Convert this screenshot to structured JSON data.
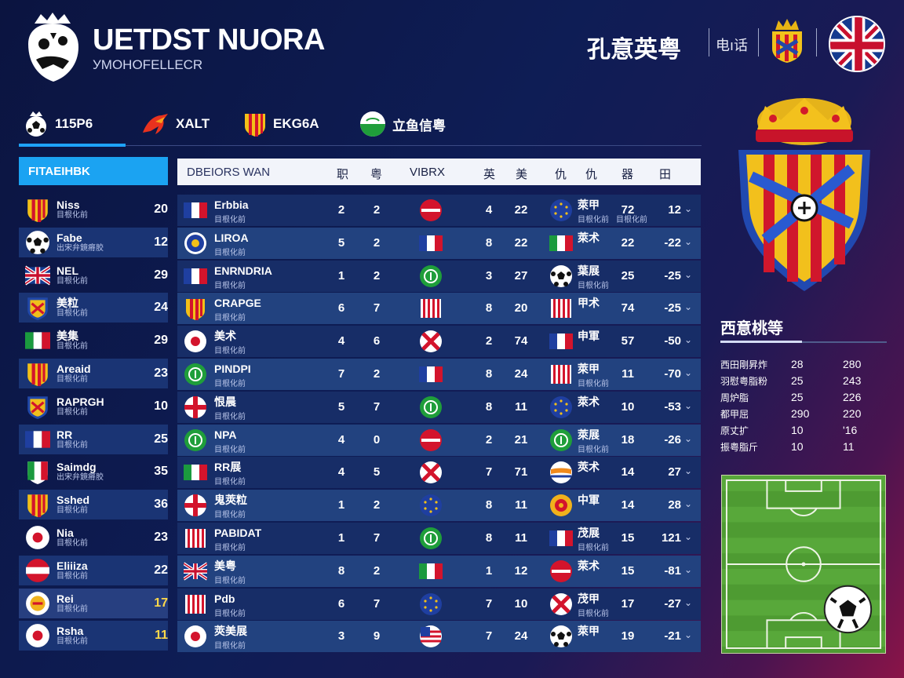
{
  "header": {
    "title": "UETDST NUORA",
    "subtitle": "УMOHOFELLECR",
    "right_title": "孔意英粤",
    "lang_label": "电ı话",
    "logo_icon": "lion-crest-icon",
    "crest_icon": "crown-crest-icon",
    "flag_icon": "uk-flag-icon"
  },
  "tabs": [
    {
      "label": "115P6",
      "icon": "football-crest-icon",
      "active": true
    },
    {
      "label": "XALT",
      "icon": "phoenix-icon",
      "active": false
    },
    {
      "label": "EKG6A",
      "icon": "striped-shield-icon",
      "active": false
    },
    {
      "label": "立鱼信粤",
      "icon": "green-badge-icon",
      "active": false
    }
  ],
  "left_panel": {
    "header": "FITAEIHBK",
    "rows": [
      {
        "name": "Niss",
        "sub": "目根化前",
        "pts": "20",
        "icon": "striped-shield-icon"
      },
      {
        "name": "Fabe",
        "sub": "出宋弁鏡瘠胶",
        "pts": "12",
        "icon": "soccer-ball-icon"
      },
      {
        "name": "NEL",
        "sub": "目根化前",
        "pts": "29",
        "icon": "uk-flag-icon"
      },
      {
        "name": "美粒",
        "sub": "目根化前",
        "pts": "24",
        "icon": "crest-icon"
      },
      {
        "name": "美集",
        "sub": "目根化前",
        "pts": "29",
        "icon": "italy-flag-icon"
      },
      {
        "name": "Areaid",
        "sub": "目根化前",
        "pts": "23",
        "icon": "striped-shield-icon"
      },
      {
        "name": "RAPRGH",
        "sub": "目根化前",
        "pts": "10",
        "icon": "crest-icon"
      },
      {
        "name": "RR",
        "sub": "目根化前",
        "pts": "25",
        "icon": "france-flag-icon"
      },
      {
        "name": "Saimdg",
        "sub": "出宋弁鏡瘠胶",
        "pts": "35",
        "icon": "italy-crest-icon"
      },
      {
        "name": "Sshed",
        "sub": "目根化前",
        "pts": "36",
        "icon": "striped-shield-icon"
      },
      {
        "name": "Nia",
        "sub": "目根化前",
        "pts": "23",
        "icon": "japan-flag-icon"
      },
      {
        "name": "Eliiiza",
        "sub": "目根化前",
        "pts": "22",
        "icon": "austria-flag-icon"
      },
      {
        "name": "Rei",
        "sub": "目根化前",
        "pts": "17",
        "icon": "gold-crest-icon"
      },
      {
        "name": "Rsha",
        "sub": "目根化前",
        "pts": "11",
        "icon": "japan-flag-icon"
      }
    ]
  },
  "table": {
    "headers": [
      "DBEIORS WAN",
      "职",
      "粤",
      "VIBRX",
      "英",
      "美",
      "仇",
      "仇",
      "器",
      "田"
    ],
    "rows": [
      {
        "name": "Erbbia",
        "sub": "目根化前",
        "c1": "2",
        "c2": "2",
        "c3": "4",
        "c4": "22",
        "n3": "萊甲",
        "n3s": "目根化前",
        "c5": "72",
        "c5s": "目根化前",
        "c6": "12"
      },
      {
        "name": "LIROA",
        "sub": "目根化前",
        "c1": "5",
        "c2": "2",
        "c3": "8",
        "c4": "22",
        "n3": "萊术",
        "n3s": "",
        "c5": "22",
        "c5s": "",
        "c6": "-22"
      },
      {
        "name": "ENRNDRIA",
        "sub": "目根化前",
        "c1": "1",
        "c2": "2",
        "c3": "3",
        "c4": "27",
        "n3": "葉展",
        "n3s": "目根化前",
        "c5": "25",
        "c5s": "",
        "c6": "-25"
      },
      {
        "name": "CRAPGE",
        "sub": "目根化前",
        "c1": "6",
        "c2": "7",
        "c3": "8",
        "c4": "20",
        "n3": "甲术",
        "n3s": "",
        "c5": "74",
        "c5s": "",
        "c6": "-25"
      },
      {
        "name": "美术",
        "sub": "目根化前",
        "c1": "4",
        "c2": "6",
        "c3": "2",
        "c4": "74",
        "n3": "申軍",
        "n3s": "",
        "c5": "57",
        "c5s": "",
        "c6": "-50"
      },
      {
        "name": "PINDPI",
        "sub": "目根化前",
        "c1": "7",
        "c2": "2",
        "c3": "8",
        "c4": "24",
        "n3": "萊甲",
        "n3s": "目根化前",
        "c5": "11",
        "c5s": "",
        "c6": "-70"
      },
      {
        "name": "恨晨",
        "sub": "目根化前",
        "c1": "5",
        "c2": "7",
        "c3": "8",
        "c4": "11",
        "n3": "萊术",
        "n3s": "",
        "c5": "10",
        "c5s": "",
        "c6": "-53"
      },
      {
        "name": "NPA",
        "sub": "目根化前",
        "c1": "4",
        "c2": "0",
        "c3": "2",
        "c4": "21",
        "n3": "萊展",
        "n3s": "目根化前",
        "c5": "18",
        "c5s": "",
        "c6": "-26"
      },
      {
        "name": "RR展",
        "sub": "目根化前",
        "c1": "4",
        "c2": "5",
        "c3": "7",
        "c4": "71",
        "n3": "莢术",
        "n3s": "",
        "c5": "14",
        "c5s": "",
        "c6": "27"
      },
      {
        "name": "鬼莢粒",
        "sub": "目根化前",
        "c1": "1",
        "c2": "2",
        "c3": "8",
        "c4": "11",
        "n3": "中軍",
        "n3s": "",
        "c5": "14",
        "c5s": "",
        "c6": "28"
      },
      {
        "name": "PABIDAT",
        "sub": "目根化前",
        "c1": "1",
        "c2": "7",
        "c3": "8",
        "c4": "11",
        "n3": "茂展",
        "n3s": "目根化前",
        "c5": "15",
        "c5s": "",
        "c6": "121"
      },
      {
        "name": "美粤",
        "sub": "目根化前",
        "c1": "8",
        "c2": "2",
        "c3": "1",
        "c4": "12",
        "n3": "萊术",
        "n3s": "",
        "c5": "15",
        "c5s": "",
        "c6": "-81"
      },
      {
        "name": "Pdb",
        "sub": "目根化前",
        "c1": "6",
        "c2": "7",
        "c3": "7",
        "c4": "10",
        "n3": "茂甲",
        "n3s": "目根化前",
        "c5": "17",
        "c5s": "",
        "c6": "-27"
      },
      {
        "name": "莢美展",
        "sub": "目根化前",
        "c1": "3",
        "c2": "9",
        "c3": "7",
        "c4": "24",
        "n3": "萊甲",
        "n3s": "",
        "c5": "19",
        "c5s": "",
        "c6": "-21"
      }
    ]
  },
  "side": {
    "title": "西意桃等",
    "stats": [
      {
        "label": "西田剛昇炸",
        "a": "28",
        "b": "280"
      },
      {
        "label": "羽慰粤脂粉",
        "a": "25",
        "b": "243"
      },
      {
        "label": "周炉脂",
        "a": "25",
        "b": "226"
      },
      {
        "label": "都甲屈",
        "a": "290",
        "b": "220"
      },
      {
        "label": "原丈扩",
        "a": "10",
        "b": "'16"
      },
      {
        "label": "振粤脂斤",
        "a": "10",
        "b": "11"
      }
    ]
  },
  "colors": {
    "accent": "#1ea3ff",
    "header_bg": "#f2f4fa",
    "row_dark": "#172d67",
    "row_light": "#22427f",
    "gold": "#ffd84a"
  }
}
